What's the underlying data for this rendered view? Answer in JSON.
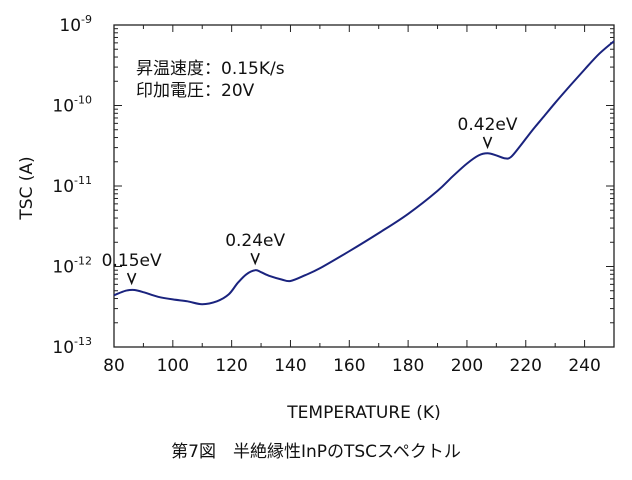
{
  "chart_data": {
    "type": "line",
    "xlabel": "TEMPERATURE (K)",
    "ylabel": "TSC (A)",
    "xlim": [
      80,
      250
    ],
    "x_ticks": [
      80,
      100,
      120,
      140,
      160,
      180,
      200,
      220,
      240
    ],
    "ylim": [
      1e-13,
      1e-09
    ],
    "y_scale": "log",
    "y_ticks": [
      {
        "base": "10",
        "exp": "-9",
        "value": 1e-09
      },
      {
        "base": "10",
        "exp": "-10",
        "value": 1e-10
      },
      {
        "base": "10",
        "exp": "-11",
        "value": 1e-11
      },
      {
        "base": "10",
        "exp": "-12",
        "value": 1e-12
      },
      {
        "base": "10",
        "exp": "-13",
        "value": 1e-13
      }
    ],
    "grid": false,
    "line_color": "#1a237e",
    "conditions": [
      "昇温速度：0.15K/s",
      "印加電圧：20V"
    ],
    "annotations": [
      {
        "label": "0.15eV",
        "x": 86,
        "y": 5.1e-13
      },
      {
        "label": "0.24eV",
        "x": 128,
        "y": 9e-13
      },
      {
        "label": "0.42eV",
        "x": 207,
        "y": 2.5e-11
      }
    ],
    "series": [
      {
        "x": [
          80,
          84,
          87,
          90,
          95,
          100,
          105,
          110,
          115,
          119,
          122,
          125,
          128,
          130,
          133,
          137,
          140,
          145,
          150,
          160,
          170,
          180,
          190,
          195,
          200,
          204,
          207,
          210,
          213,
          215,
          218,
          222,
          226,
          230,
          235,
          240,
          245,
          250
        ],
        "y": [
          4.4e-13,
          5e-13,
          5.1e-13,
          4.8e-13,
          4.2e-13,
          3.9e-13,
          3.7e-13,
          3.4e-13,
          3.7e-13,
          4.5e-13,
          6.2e-13,
          8e-13,
          9e-13,
          8.5e-13,
          7.6e-13,
          6.9e-13,
          6.6e-13,
          7.8e-13,
          9.5e-13,
          1.55e-12,
          2.6e-12,
          4.5e-12,
          8.7e-12,
          1.3e-11,
          1.9e-11,
          2.4e-11,
          2.55e-11,
          2.4e-11,
          2.2e-11,
          2.3e-11,
          3.1e-11,
          4.8e-11,
          7.2e-11,
          1.08e-10,
          1.75e-10,
          2.8e-10,
          4.4e-10,
          6.3e-10
        ]
      }
    ]
  },
  "caption": "第7図　半絶縁性InPのTSCスペクトル"
}
